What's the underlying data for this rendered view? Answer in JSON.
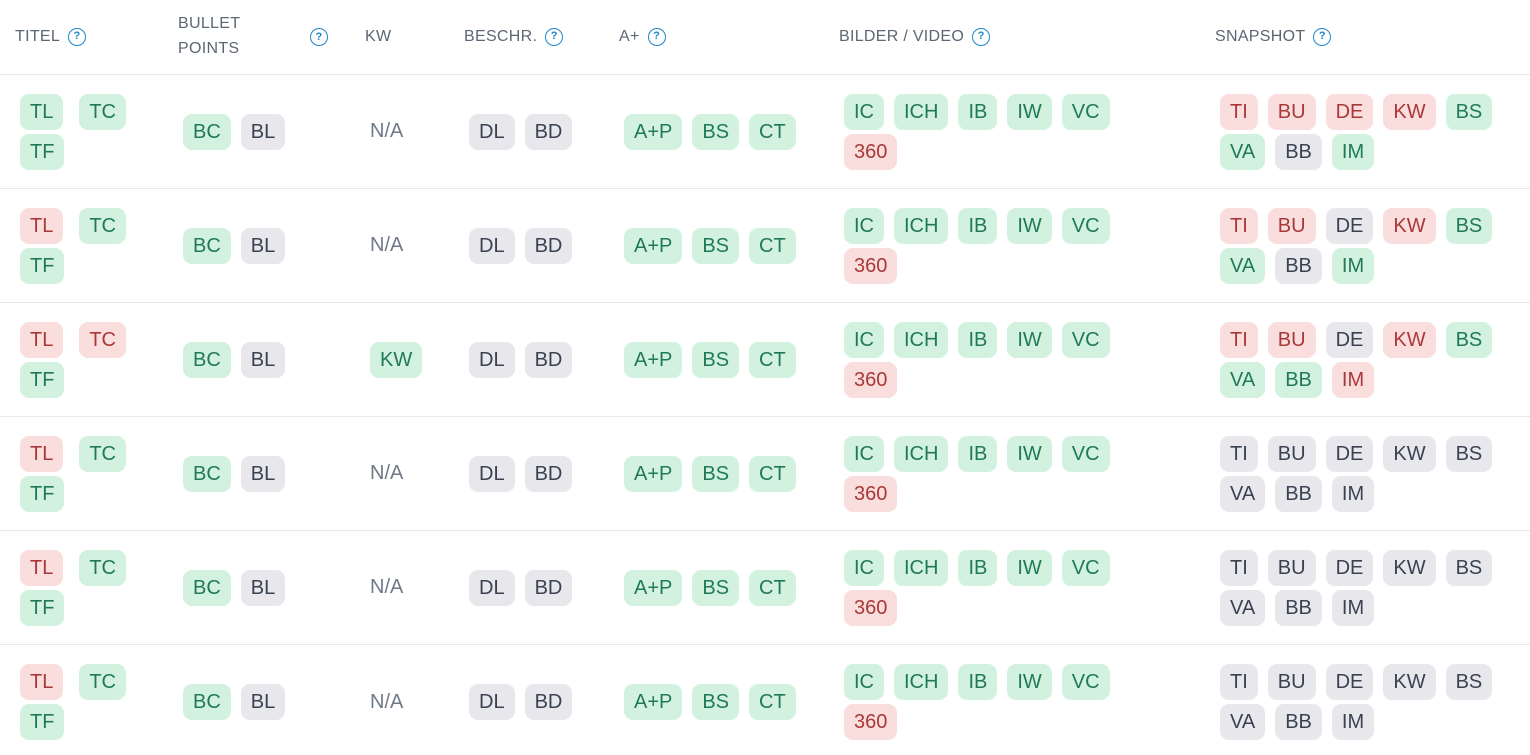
{
  "colors": {
    "badge_green_bg": "#d2f2df",
    "badge_green_text": "#207958",
    "badge_red_bg": "#fadddd",
    "badge_red_text": "#a93939",
    "badge_gray_bg": "#e8e8ec",
    "badge_gray_text": "#3a4252",
    "header_text": "#5d6673",
    "help_icon_blue": "#1d86c9",
    "na_text": "#6e7a88",
    "row_divider": "#e8e9ec",
    "background": "#ffffff"
  },
  "header": {
    "help_icon_glyph": "?",
    "columns": [
      {
        "id": "titel",
        "label": "TITEL",
        "help": true,
        "wrap": false
      },
      {
        "id": "bullet-points",
        "label": "BULLET POINTS",
        "help": true,
        "wrap": true
      },
      {
        "id": "kw",
        "label": "KW",
        "help": false,
        "wrap": false
      },
      {
        "id": "beschr",
        "label": "BESCHR.",
        "help": true,
        "wrap": false
      },
      {
        "id": "aplus",
        "label": "A+",
        "help": true,
        "wrap": false
      },
      {
        "id": "bilder-video",
        "label": "BILDER / VIDEO",
        "help": true,
        "wrap": false
      },
      {
        "id": "snapshot",
        "label": "SNAPSHOT",
        "help": true,
        "wrap": false
      }
    ]
  },
  "columns_order": [
    "titel",
    "bullet_points",
    "kw",
    "beschr",
    "aplus",
    "bilder_video",
    "snapshot"
  ],
  "rows": [
    {
      "titel": {
        "lines": [
          [
            {
              "label": "TL",
              "status": "green"
            },
            {
              "label": "TC",
              "status": "green"
            }
          ],
          [
            {
              "label": "TF",
              "status": "green"
            }
          ]
        ]
      },
      "bullet_points": {
        "lines": [
          [
            {
              "label": "BC",
              "status": "green"
            },
            {
              "label": "BL",
              "status": "gray"
            }
          ]
        ]
      },
      "kw": {
        "na": "N/A"
      },
      "beschr": {
        "lines": [
          [
            {
              "label": "DL",
              "status": "gray"
            },
            {
              "label": "BD",
              "status": "gray"
            }
          ]
        ]
      },
      "aplus": {
        "lines": [
          [
            {
              "label": "A+P",
              "status": "green"
            },
            {
              "label": "BS",
              "status": "green"
            },
            {
              "label": "CT",
              "status": "green"
            }
          ]
        ]
      },
      "bilder_video": {
        "lines": [
          [
            {
              "label": "IC",
              "status": "green"
            },
            {
              "label": "ICH",
              "status": "green"
            },
            {
              "label": "IB",
              "status": "green"
            },
            {
              "label": "IW",
              "status": "green"
            },
            {
              "label": "VC",
              "status": "green"
            }
          ],
          [
            {
              "label": "360",
              "status": "red"
            }
          ]
        ]
      },
      "snapshot": {
        "lines": [
          [
            {
              "label": "TI",
              "status": "red"
            },
            {
              "label": "BU",
              "status": "red"
            },
            {
              "label": "DE",
              "status": "red"
            },
            {
              "label": "KW",
              "status": "red"
            },
            {
              "label": "BS",
              "status": "green"
            }
          ],
          [
            {
              "label": "VA",
              "status": "green"
            },
            {
              "label": "BB",
              "status": "gray"
            },
            {
              "label": "IM",
              "status": "green"
            }
          ]
        ]
      }
    },
    {
      "titel": {
        "lines": [
          [
            {
              "label": "TL",
              "status": "red"
            },
            {
              "label": "TC",
              "status": "green"
            }
          ],
          [
            {
              "label": "TF",
              "status": "green"
            }
          ]
        ]
      },
      "bullet_points": {
        "lines": [
          [
            {
              "label": "BC",
              "status": "green"
            },
            {
              "label": "BL",
              "status": "gray"
            }
          ]
        ]
      },
      "kw": {
        "na": "N/A"
      },
      "beschr": {
        "lines": [
          [
            {
              "label": "DL",
              "status": "gray"
            },
            {
              "label": "BD",
              "status": "gray"
            }
          ]
        ]
      },
      "aplus": {
        "lines": [
          [
            {
              "label": "A+P",
              "status": "green"
            },
            {
              "label": "BS",
              "status": "green"
            },
            {
              "label": "CT",
              "status": "green"
            }
          ]
        ]
      },
      "bilder_video": {
        "lines": [
          [
            {
              "label": "IC",
              "status": "green"
            },
            {
              "label": "ICH",
              "status": "green"
            },
            {
              "label": "IB",
              "status": "green"
            },
            {
              "label": "IW",
              "status": "green"
            },
            {
              "label": "VC",
              "status": "green"
            }
          ],
          [
            {
              "label": "360",
              "status": "red"
            }
          ]
        ]
      },
      "snapshot": {
        "lines": [
          [
            {
              "label": "TI",
              "status": "red"
            },
            {
              "label": "BU",
              "status": "red"
            },
            {
              "label": "DE",
              "status": "gray"
            },
            {
              "label": "KW",
              "status": "red"
            },
            {
              "label": "BS",
              "status": "green"
            }
          ],
          [
            {
              "label": "VA",
              "status": "green"
            },
            {
              "label": "BB",
              "status": "gray"
            },
            {
              "label": "IM",
              "status": "green"
            }
          ]
        ]
      }
    },
    {
      "titel": {
        "lines": [
          [
            {
              "label": "TL",
              "status": "red"
            },
            {
              "label": "TC",
              "status": "red"
            }
          ],
          [
            {
              "label": "TF",
              "status": "green"
            }
          ]
        ]
      },
      "bullet_points": {
        "lines": [
          [
            {
              "label": "BC",
              "status": "green"
            },
            {
              "label": "BL",
              "status": "gray"
            }
          ]
        ]
      },
      "kw": {
        "lines": [
          [
            {
              "label": "KW",
              "status": "green"
            }
          ]
        ]
      },
      "beschr": {
        "lines": [
          [
            {
              "label": "DL",
              "status": "gray"
            },
            {
              "label": "BD",
              "status": "gray"
            }
          ]
        ]
      },
      "aplus": {
        "lines": [
          [
            {
              "label": "A+P",
              "status": "green"
            },
            {
              "label": "BS",
              "status": "green"
            },
            {
              "label": "CT",
              "status": "green"
            }
          ]
        ]
      },
      "bilder_video": {
        "lines": [
          [
            {
              "label": "IC",
              "status": "green"
            },
            {
              "label": "ICH",
              "status": "green"
            },
            {
              "label": "IB",
              "status": "green"
            },
            {
              "label": "IW",
              "status": "green"
            },
            {
              "label": "VC",
              "status": "green"
            }
          ],
          [
            {
              "label": "360",
              "status": "red"
            }
          ]
        ]
      },
      "snapshot": {
        "lines": [
          [
            {
              "label": "TI",
              "status": "red"
            },
            {
              "label": "BU",
              "status": "red"
            },
            {
              "label": "DE",
              "status": "gray"
            },
            {
              "label": "KW",
              "status": "red"
            },
            {
              "label": "BS",
              "status": "green"
            }
          ],
          [
            {
              "label": "VA",
              "status": "green"
            },
            {
              "label": "BB",
              "status": "green"
            },
            {
              "label": "IM",
              "status": "red"
            }
          ]
        ]
      }
    },
    {
      "titel": {
        "lines": [
          [
            {
              "label": "TL",
              "status": "red"
            },
            {
              "label": "TC",
              "status": "green"
            }
          ],
          [
            {
              "label": "TF",
              "status": "green"
            }
          ]
        ]
      },
      "bullet_points": {
        "lines": [
          [
            {
              "label": "BC",
              "status": "green"
            },
            {
              "label": "BL",
              "status": "gray"
            }
          ]
        ]
      },
      "kw": {
        "na": "N/A"
      },
      "beschr": {
        "lines": [
          [
            {
              "label": "DL",
              "status": "gray"
            },
            {
              "label": "BD",
              "status": "gray"
            }
          ]
        ]
      },
      "aplus": {
        "lines": [
          [
            {
              "label": "A+P",
              "status": "green"
            },
            {
              "label": "BS",
              "status": "green"
            },
            {
              "label": "CT",
              "status": "green"
            }
          ]
        ]
      },
      "bilder_video": {
        "lines": [
          [
            {
              "label": "IC",
              "status": "green"
            },
            {
              "label": "ICH",
              "status": "green"
            },
            {
              "label": "IB",
              "status": "green"
            },
            {
              "label": "IW",
              "status": "green"
            },
            {
              "label": "VC",
              "status": "green"
            }
          ],
          [
            {
              "label": "360",
              "status": "red"
            }
          ]
        ]
      },
      "snapshot": {
        "lines": [
          [
            {
              "label": "TI",
              "status": "gray"
            },
            {
              "label": "BU",
              "status": "gray"
            },
            {
              "label": "DE",
              "status": "gray"
            },
            {
              "label": "KW",
              "status": "gray"
            },
            {
              "label": "BS",
              "status": "gray"
            }
          ],
          [
            {
              "label": "VA",
              "status": "gray"
            },
            {
              "label": "BB",
              "status": "gray"
            },
            {
              "label": "IM",
              "status": "gray"
            }
          ]
        ]
      }
    },
    {
      "titel": {
        "lines": [
          [
            {
              "label": "TL",
              "status": "red"
            },
            {
              "label": "TC",
              "status": "green"
            }
          ],
          [
            {
              "label": "TF",
              "status": "green"
            }
          ]
        ]
      },
      "bullet_points": {
        "lines": [
          [
            {
              "label": "BC",
              "status": "green"
            },
            {
              "label": "BL",
              "status": "gray"
            }
          ]
        ]
      },
      "kw": {
        "na": "N/A"
      },
      "beschr": {
        "lines": [
          [
            {
              "label": "DL",
              "status": "gray"
            },
            {
              "label": "BD",
              "status": "gray"
            }
          ]
        ]
      },
      "aplus": {
        "lines": [
          [
            {
              "label": "A+P",
              "status": "green"
            },
            {
              "label": "BS",
              "status": "green"
            },
            {
              "label": "CT",
              "status": "green"
            }
          ]
        ]
      },
      "bilder_video": {
        "lines": [
          [
            {
              "label": "IC",
              "status": "green"
            },
            {
              "label": "ICH",
              "status": "green"
            },
            {
              "label": "IB",
              "status": "green"
            },
            {
              "label": "IW",
              "status": "green"
            },
            {
              "label": "VC",
              "status": "green"
            }
          ],
          [
            {
              "label": "360",
              "status": "red"
            }
          ]
        ]
      },
      "snapshot": {
        "lines": [
          [
            {
              "label": "TI",
              "status": "gray"
            },
            {
              "label": "BU",
              "status": "gray"
            },
            {
              "label": "DE",
              "status": "gray"
            },
            {
              "label": "KW",
              "status": "gray"
            },
            {
              "label": "BS",
              "status": "gray"
            }
          ],
          [
            {
              "label": "VA",
              "status": "gray"
            },
            {
              "label": "BB",
              "status": "gray"
            },
            {
              "label": "IM",
              "status": "gray"
            }
          ]
        ]
      }
    },
    {
      "titel": {
        "lines": [
          [
            {
              "label": "TL",
              "status": "red"
            },
            {
              "label": "TC",
              "status": "green"
            }
          ],
          [
            {
              "label": "TF",
              "status": "green"
            }
          ]
        ]
      },
      "bullet_points": {
        "lines": [
          [
            {
              "label": "BC",
              "status": "green"
            },
            {
              "label": "BL",
              "status": "gray"
            }
          ]
        ]
      },
      "kw": {
        "na": "N/A"
      },
      "beschr": {
        "lines": [
          [
            {
              "label": "DL",
              "status": "gray"
            },
            {
              "label": "BD",
              "status": "gray"
            }
          ]
        ]
      },
      "aplus": {
        "lines": [
          [
            {
              "label": "A+P",
              "status": "green"
            },
            {
              "label": "BS",
              "status": "green"
            },
            {
              "label": "CT",
              "status": "green"
            }
          ]
        ]
      },
      "bilder_video": {
        "lines": [
          [
            {
              "label": "IC",
              "status": "green"
            },
            {
              "label": "ICH",
              "status": "green"
            },
            {
              "label": "IB",
              "status": "green"
            },
            {
              "label": "IW",
              "status": "green"
            },
            {
              "label": "VC",
              "status": "green"
            }
          ],
          [
            {
              "label": "360",
              "status": "red"
            }
          ]
        ]
      },
      "snapshot": {
        "lines": [
          [
            {
              "label": "TI",
              "status": "gray"
            },
            {
              "label": "BU",
              "status": "gray"
            },
            {
              "label": "DE",
              "status": "gray"
            },
            {
              "label": "KW",
              "status": "gray"
            },
            {
              "label": "BS",
              "status": "gray"
            }
          ],
          [
            {
              "label": "VA",
              "status": "gray"
            },
            {
              "label": "BB",
              "status": "gray"
            },
            {
              "label": "IM",
              "status": "gray"
            }
          ]
        ]
      }
    }
  ]
}
